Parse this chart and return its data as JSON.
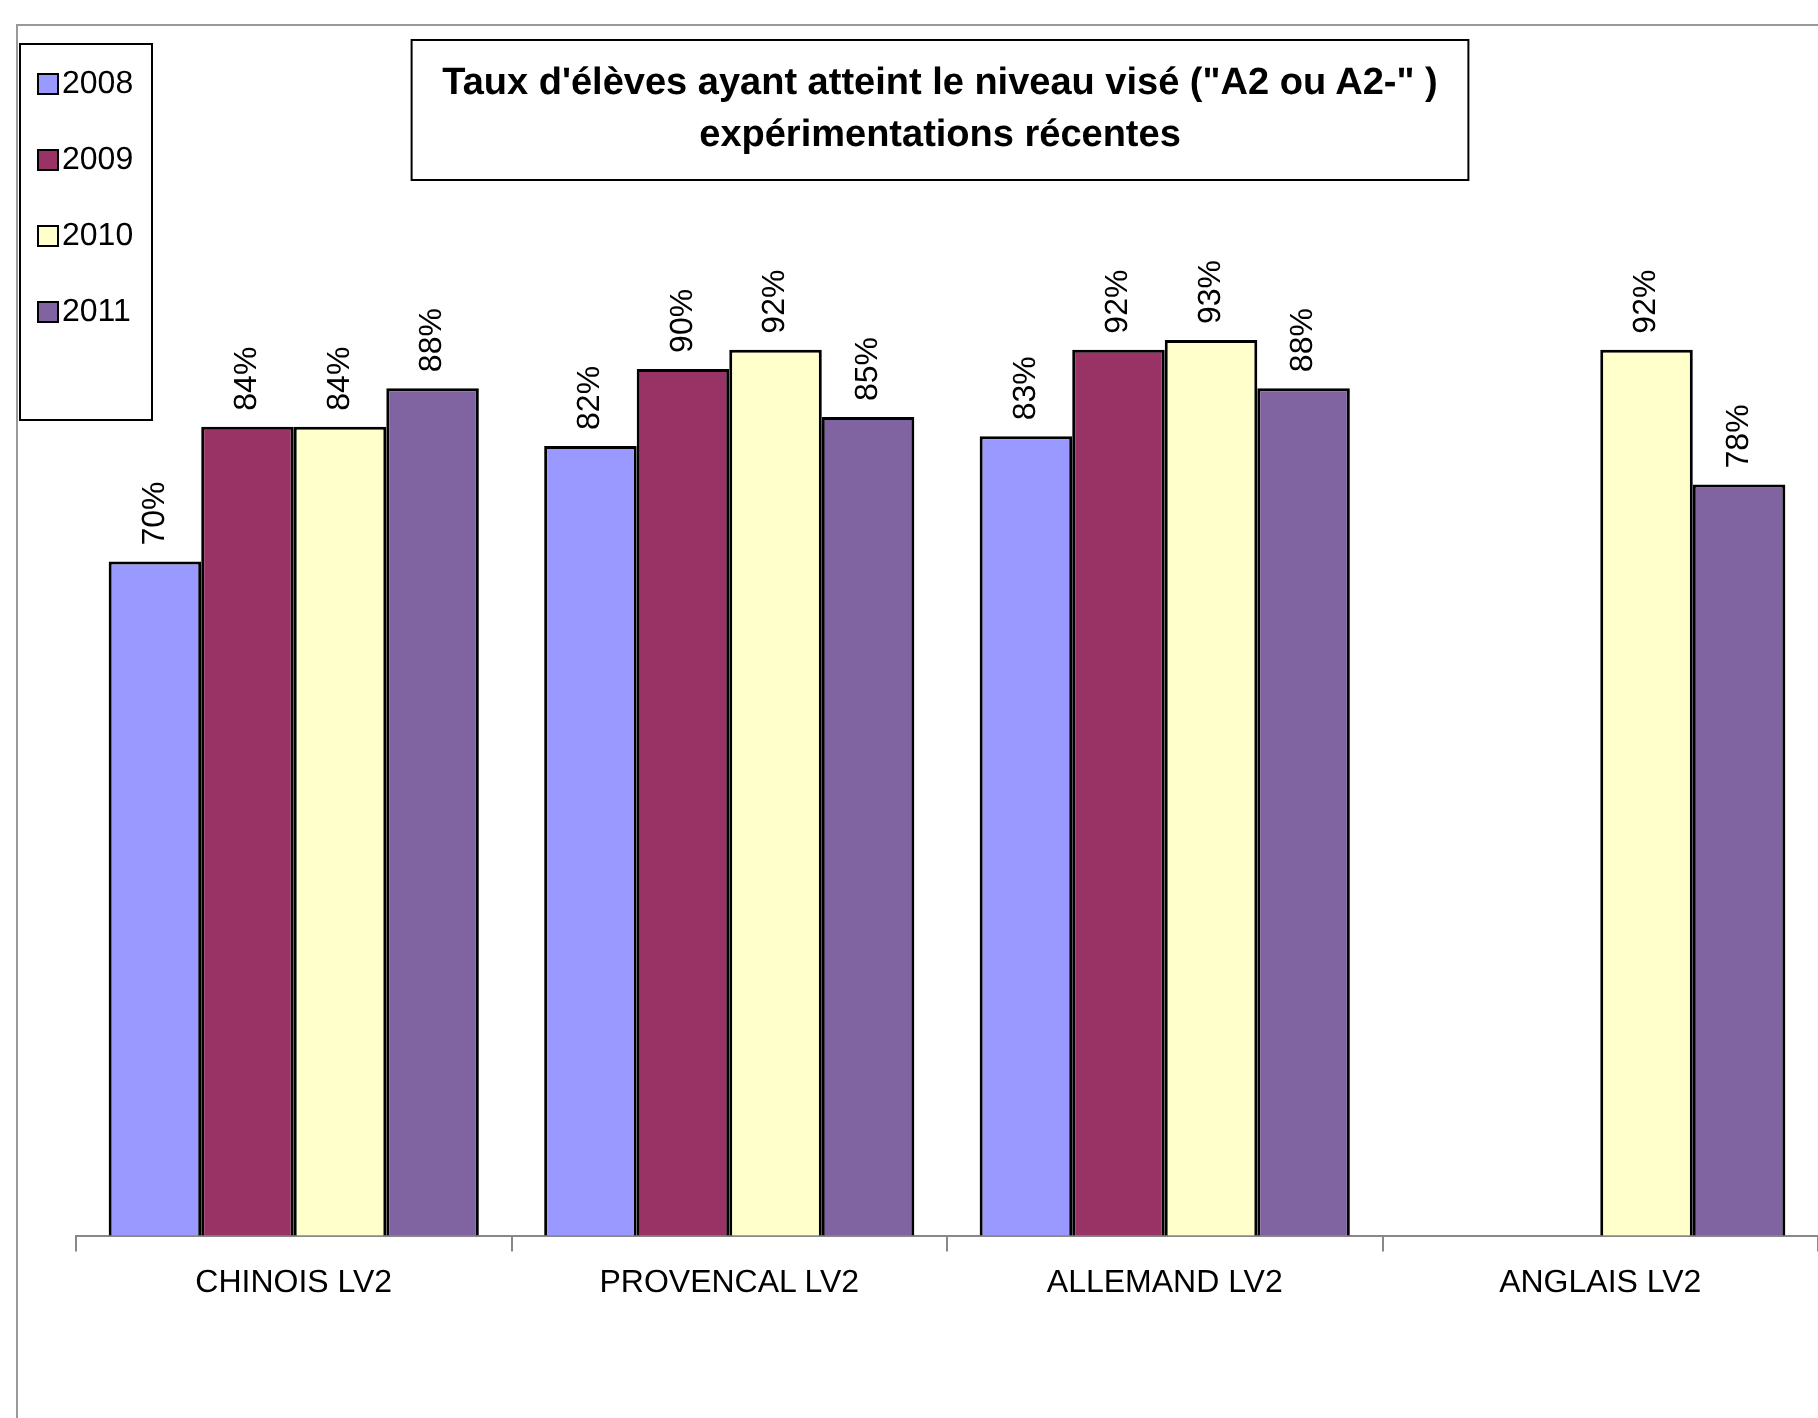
{
  "chart_data": {
    "type": "bar",
    "title": "Taux d'élèves ayant atteint le niveau visé (\"A2 ou A2-\" )\nexpérimentations récentes",
    "categories": [
      "CHINOIS LV2",
      "PROVENCAL LV2",
      "ALLEMAND LV2",
      "ANGLAIS LV2"
    ],
    "series": [
      {
        "name": "2008",
        "color": "#9999ff",
        "values": [
          70,
          82,
          83,
          null
        ],
        "value_labels": [
          "70%",
          "82%",
          "83%",
          null
        ]
      },
      {
        "name": "2009",
        "color": "#993366",
        "values": [
          84,
          90,
          92,
          null
        ],
        "value_labels": [
          "84%",
          "90%",
          "92%",
          null
        ]
      },
      {
        "name": "2010",
        "color": "#ffffcc",
        "values": [
          84,
          92,
          93,
          92
        ],
        "value_labels": [
          "84%",
          "92%",
          "93%",
          "92%"
        ]
      },
      {
        "name": "2011",
        "color": "#8064a2",
        "values": [
          88,
          85,
          88,
          78
        ],
        "value_labels": [
          "88%",
          "85%",
          "88%",
          "78%"
        ]
      }
    ],
    "legend": "top left",
    "grid": false
  }
}
